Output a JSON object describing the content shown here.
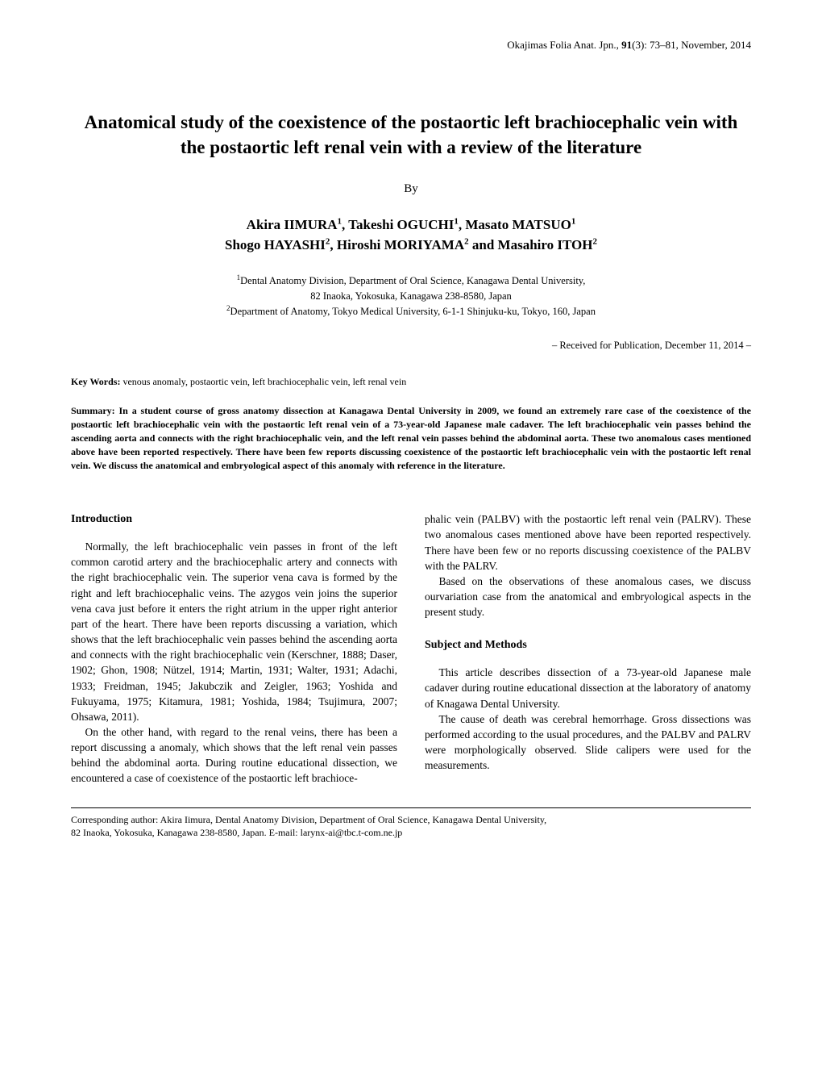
{
  "header": {
    "journal": "Okajimas Folia Anat. Jpn., ",
    "volume": "91",
    "issue_pages": "(3): 73–81, November, 2014"
  },
  "title": "Anatomical study of the coexistence of the postaortic left brachiocephalic vein with the postaortic left renal vein with a review of the literature",
  "by": "By",
  "authors_line1": "Akira IIMURA",
  "authors_sup1": "1",
  "authors_line1b": ", Takeshi OGUCHI",
  "authors_sup1b": "1",
  "authors_line1c": ", Masato MATSUO",
  "authors_sup1c": "1",
  "authors_line2a": "Shogo HAYASHI",
  "authors_sup2a": "2",
  "authors_line2b": ", Hiroshi MORIYAMA",
  "authors_sup2b": "2",
  "authors_line2c": " and Masahiro ITOH",
  "authors_sup2c": "2",
  "affil_sup1": "1",
  "affil1": "Dental Anatomy Division, Department of Oral Science, Kanagawa Dental University,",
  "affil1b": "82 Inaoka, Yokosuka, Kanagawa 238-8580, Japan",
  "affil_sup2": "2",
  "affil2": "Department of Anatomy, Tokyo Medical University, 6-1-1 Shinjuku-ku, Tokyo, 160, Japan",
  "received": "– Received for Publication, December 11, 2014 –",
  "keywords_label": "Key Words:",
  "keywords_text": "  venous anomaly, postaortic vein, left brachiocephalic vein, left renal vein",
  "summary": "Summary: In a student course of gross anatomy dissection at Kanagawa Dental University in 2009, we found an extremely rare case of the coexistence of the postaortic left brachiocephalic vein with the postaortic left renal vein of a 73-year-old Japanese male cadaver. The left brachiocephalic vein passes behind the ascending aorta and connects with the right brachiocephalic vein, and the left renal vein passes behind the abdominal aorta. These two anomalous cases mentioned above have been reported respectively. There have been few reports discussing coexistence of the postaortic left brachiocephalic vein with the postaortic left renal vein. We discuss the anatomical and embryological aspect of this anomaly with reference in the literature.",
  "left_col": {
    "heading": "Introduction",
    "p1": "Normally, the left brachiocephalic vein passes in front of the left common carotid artery and the brachiocephalic artery and connects with the right brachiocephalic vein. The superior vena cava is formed by the right and left brachiocephalic veins. The azygos vein joins the superior vena cava just before it enters the right atrium in the upper right anterior part of the heart. There have been reports discussing a variation, which shows that the left brachiocephalic vein passes behind the ascending aorta and connects with the right brachiocephalic vein (Kerschner, 1888; Daser, 1902; Ghon, 1908; Nützel, 1914; Martin, 1931; Walter, 1931; Adachi, 1933; Freidman, 1945; Jakubczik and Zeigler, 1963; Yoshida and Fukuyama, 1975; Kitamura, 1981; Yoshida, 1984; Tsujimura, 2007; Ohsawa, 2011).",
    "p2": "On the other hand, with regard to the renal veins, there has been a report discussing a anomaly, which shows that the left renal vein passes behind the abdominal aorta. During routine educational dissection, we encountered a case of coexistence of the postaortic left brachioce-"
  },
  "right_col": {
    "p1": "phalic vein (PALBV) with the postaortic left renal vein (PALRV). These two anomalous cases mentioned above have been reported respectively. There have been few or no reports discussing coexistence of the PALBV with the PALRV.",
    "p2": "Based on the observations of these anomalous cases, we discuss ourvariation case from the anatomical and embryological aspects in the present study.",
    "heading": "Subject and Methods",
    "p3": "This article describes dissection of a 73-year-old Japanese male cadaver during routine educational dissection at the laboratory of anatomy of Knagawa Dental University.",
    "p4": "The cause of death was cerebral hemorrhage. Gross dissections was performed according to the usual procedures, and the PALBV and PALRV were morphologically observed. Slide calipers were used for the measurements."
  },
  "footer1": "Corresponding author: Akira Iimura, Dental Anatomy Division, Department of Oral Science, Kanagawa Dental University,",
  "footer2": "82 Inaoka, Yokosuka, Kanagawa 238-8580, Japan. E-mail: larynx-ai@tbc.t-com.ne.jp"
}
